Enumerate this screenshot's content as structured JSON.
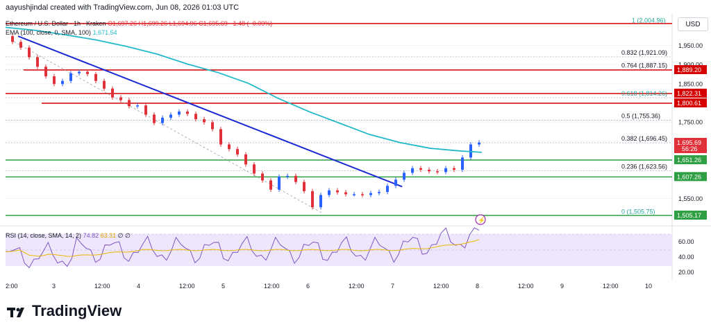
{
  "header": {
    "attribution": "aayushjindal created with TradingView.com, Jun 08, 2026 01:03 UTC",
    "symbol": "Ethereum / U.S. Dollar · 1h · Kraken",
    "ohlc": "O1,697.26 H1,699.26 L1,694.96 C1,695.69 −1.48 (−0.09%)",
    "ema_label": "EMA (100, close, 0, SMA, 100)",
    "ema_value": "1,671.54",
    "rsi_label": "RSI (14, close, SMA, 14, 2)",
    "rsi_value": "74.82",
    "rsi_sma_value": "63.31",
    "rsi_extra": "∅ ∅"
  },
  "brand": "TradingView",
  "currency_button": "USD",
  "colors": {
    "up": "#2962ff",
    "down": "#e0313a",
    "ema": "#21b8c8",
    "trendline": "#1c2ad1",
    "support": "#2ea043",
    "resistance": "#d50000",
    "rsi": "#7e57c2",
    "rsi_ma": "#e8b800",
    "rsi_bg": "#eee6fb"
  },
  "chart_data": {
    "type": "candlestick",
    "title": "Ethereum / U.S. Dollar · 1h · Kraken",
    "y_ticks": [
      "1,950.00",
      "1,900.00",
      "1,850.00",
      "1,750.00",
      "1,550.00"
    ],
    "x_ticks": [
      "2:00",
      "3",
      "12:00",
      "4",
      "12:00",
      "5",
      "12:00",
      "6",
      "12:00",
      "7",
      "12:00",
      "8",
      "12:00",
      "9",
      "12:00",
      "10"
    ],
    "fib_levels": [
      {
        "label": "1 (2,004.96)",
        "ratio": 1,
        "price": 2004.96
      },
      {
        "label": "0.832 (1,921.09)",
        "ratio": 0.832,
        "price": 1921.09
      },
      {
        "label": "0.764 (1,887.15)",
        "ratio": 0.764,
        "price": 1887.15
      },
      {
        "label": "0.618 (1,814.26)",
        "ratio": 0.618,
        "price": 1814.26
      },
      {
        "label": "0.5 (1,755.36)",
        "ratio": 0.5,
        "price": 1755.36
      },
      {
        "label": "0.382 (1,696.45)",
        "ratio": 0.382,
        "price": 1696.45
      },
      {
        "label": "0.236 (1,623.56)",
        "ratio": 0.236,
        "price": 1623.56
      },
      {
        "label": "0 (1,505.75)",
        "ratio": 0,
        "price": 1505.75
      }
    ],
    "resistance_levels": [
      "1,889.20",
      "1,822.31",
      "1,800.61"
    ],
    "support_levels": [
      "1,651.26",
      "1,607.26",
      "1,505.17"
    ],
    "price_labels": {
      "last_price": "1,695.69",
      "countdown": "56:26"
    },
    "ema_100": [
      [
        0,
        1998
      ],
      [
        0.5,
        1990
      ],
      [
        1,
        1978
      ],
      [
        1.5,
        1965
      ],
      [
        2,
        1948
      ],
      [
        2.5,
        1928
      ],
      [
        3,
        1902
      ],
      [
        3.5,
        1880
      ],
      [
        4,
        1852
      ],
      [
        4.5,
        1812
      ],
      [
        5,
        1778
      ],
      [
        5.5,
        1748
      ],
      [
        6,
        1718
      ],
      [
        6.5,
        1697
      ],
      [
        7,
        1682
      ],
      [
        7.5,
        1675
      ],
      [
        7.85,
        1671.54
      ]
    ],
    "trendline": [
      [
        0,
        1975
      ],
      [
        7.1,
        1598
      ]
    ],
    "candles_close_approx": [
      [
        0.05,
        1960
      ],
      [
        0.15,
        1945
      ],
      [
        0.3,
        1920
      ],
      [
        0.45,
        1895
      ],
      [
        0.6,
        1870
      ],
      [
        0.75,
        1850
      ],
      [
        0.9,
        1858
      ],
      [
        1.0,
        1878
      ],
      [
        1.1,
        1882
      ],
      [
        1.25,
        1876
      ],
      [
        1.4,
        1858
      ],
      [
        1.55,
        1838
      ],
      [
        1.7,
        1815
      ],
      [
        1.85,
        1808
      ],
      [
        2.0,
        1792
      ],
      [
        2.2,
        1794
      ],
      [
        2.35,
        1770
      ],
      [
        2.5,
        1748
      ],
      [
        2.6,
        1762
      ],
      [
        2.75,
        1770
      ],
      [
        2.9,
        1778
      ],
      [
        3.05,
        1772
      ],
      [
        3.2,
        1758
      ],
      [
        3.35,
        1750
      ],
      [
        3.5,
        1732
      ],
      [
        3.6,
        1692
      ],
      [
        3.75,
        1680
      ],
      [
        3.9,
        1666
      ],
      [
        4.05,
        1640
      ],
      [
        4.15,
        1616
      ],
      [
        4.3,
        1598
      ],
      [
        4.45,
        1574
      ],
      [
        4.6,
        1608
      ],
      [
        4.75,
        1610
      ],
      [
        4.9,
        1594
      ],
      [
        5.05,
        1570
      ],
      [
        5.15,
        1528
      ],
      [
        5.3,
        1560
      ],
      [
        5.45,
        1572
      ],
      [
        5.6,
        1567
      ],
      [
        5.75,
        1562
      ],
      [
        5.9,
        1562
      ],
      [
        6.05,
        1560
      ],
      [
        6.2,
        1565
      ],
      [
        6.35,
        1568
      ],
      [
        6.5,
        1584
      ],
      [
        6.65,
        1600
      ],
      [
        6.8,
        1618
      ],
      [
        6.95,
        1630
      ],
      [
        7.05,
        1626
      ],
      [
        7.2,
        1622
      ],
      [
        7.35,
        1620
      ],
      [
        7.5,
        1630
      ],
      [
        7.6,
        1626
      ],
      [
        7.7,
        1658
      ],
      [
        7.82,
        1692
      ],
      [
        7.9,
        1697
      ]
    ],
    "rsi": {
      "last": 74.82,
      "ma_last": 63.31,
      "levels": [
        "60.00",
        "40.00",
        "20.00"
      ]
    }
  }
}
